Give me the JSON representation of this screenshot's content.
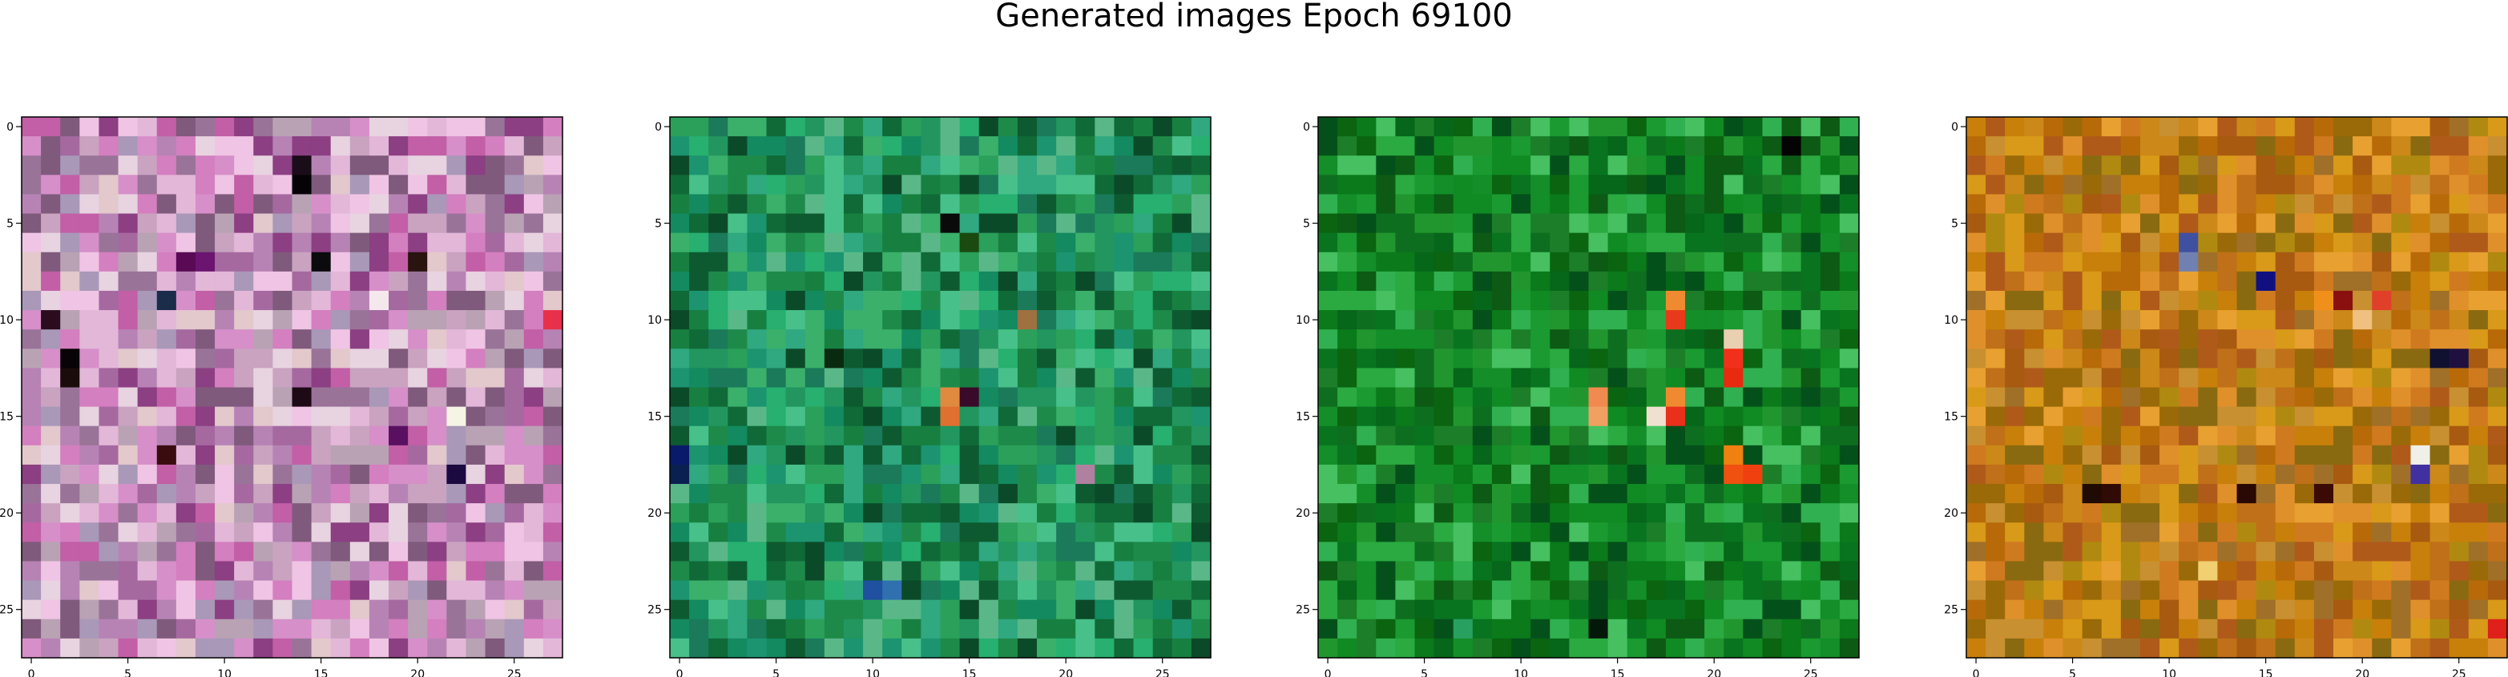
{
  "figure": {
    "title": "Generated images Epoch 69100"
  },
  "chart_data": [
    {
      "type": "heatmap",
      "description": "28x28 RGB image, pinkish-purple palette",
      "grid_size": [
        28,
        28
      ],
      "xlim": [
        -0.5,
        27.5
      ],
      "ylim": [
        27.5,
        -0.5
      ],
      "xticks": [
        0,
        5,
        10,
        15,
        20,
        25
      ],
      "yticks": [
        0,
        5,
        10,
        15,
        20,
        25
      ],
      "palette": [
        "#c9a3c0",
        "#e3b7d8",
        "#b783b5",
        "#a569a0",
        "#d68fc9",
        "#e8d3e0",
        "#9a7399",
        "#c25fa6",
        "#f0c4e4",
        "#7f5a7c",
        "#b9a2b4",
        "#d47fbf",
        "#8c3f82",
        "#e3c8cc",
        "#a998b8"
      ],
      "accents": [
        {
          "row": 2,
          "col": 14,
          "color": "#1a0c18"
        },
        {
          "row": 3,
          "col": 14,
          "color": "#060306"
        },
        {
          "row": 7,
          "col": 8,
          "color": "#5a0a55"
        },
        {
          "row": 7,
          "col": 9,
          "color": "#6b1470"
        },
        {
          "row": 7,
          "col": 15,
          "color": "#0b0a0d"
        },
        {
          "row": 7,
          "col": 20,
          "color": "#2a1410"
        },
        {
          "row": 9,
          "col": 7,
          "color": "#1a2c4a"
        },
        {
          "row": 10,
          "col": 1,
          "color": "#2a0c1e"
        },
        {
          "row": 12,
          "col": 2,
          "color": "#080306"
        },
        {
          "row": 13,
          "col": 2,
          "color": "#1a0c0a"
        },
        {
          "row": 14,
          "col": 14,
          "color": "#1e0a16"
        },
        {
          "row": 16,
          "col": 19,
          "color": "#5a1060"
        },
        {
          "row": 17,
          "col": 7,
          "color": "#3a0c10"
        },
        {
          "row": 18,
          "col": 22,
          "color": "#1a0a40"
        },
        {
          "row": 10,
          "col": 27,
          "color": "#e8304a"
        },
        {
          "row": 9,
          "col": 18,
          "color": "#f4e8ec"
        },
        {
          "row": 15,
          "col": 22,
          "color": "#f6f4e4"
        }
      ],
      "seed": 11
    },
    {
      "type": "heatmap",
      "description": "28x28 RGB image, teal-green palette",
      "grid_size": [
        28,
        28
      ],
      "xlim": [
        -0.5,
        27.5
      ],
      "ylim": [
        27.5,
        -0.5
      ],
      "xticks": [
        0,
        5,
        10,
        15,
        20,
        25
      ],
      "yticks": [
        0,
        5,
        10,
        15,
        20,
        25
      ],
      "palette": [
        "#1e8a4a",
        "#2aa05a",
        "#178040",
        "#0f6a38",
        "#3ab06a",
        "#1c9470",
        "#0e5a30",
        "#27b070",
        "#48c08a",
        "#1a7a5a",
        "#30a880",
        "#0b4a28",
        "#5ab888",
        "#138a60",
        "#22965e"
      ],
      "accents": [
        {
          "row": 5,
          "col": 14,
          "color": "#0a0a0a"
        },
        {
          "row": 6,
          "col": 15,
          "color": "#1a4a10"
        },
        {
          "row": 10,
          "col": 18,
          "color": "#a07040"
        },
        {
          "row": 14,
          "col": 14,
          "color": "#e08a40"
        },
        {
          "row": 15,
          "col": 14,
          "color": "#e07030"
        },
        {
          "row": 14,
          "col": 15,
          "color": "#3a0a2a"
        },
        {
          "row": 17,
          "col": 0,
          "color": "#0a1a6a"
        },
        {
          "row": 18,
          "col": 0,
          "color": "#0a2050"
        },
        {
          "row": 18,
          "col": 21,
          "color": "#b080a0"
        },
        {
          "row": 24,
          "col": 10,
          "color": "#2050a0"
        },
        {
          "row": 24,
          "col": 11,
          "color": "#3070b0"
        },
        {
          "row": 12,
          "col": 8,
          "color": "#0a2a10"
        }
      ],
      "seed": 23
    },
    {
      "type": "heatmap",
      "description": "28x28 RGB image, deep green palette with orange-red accents",
      "grid_size": [
        28,
        28
      ],
      "xlim": [
        -0.5,
        27.5
      ],
      "ylim": [
        27.5,
        -0.5
      ],
      "xticks": [
        0,
        5,
        10,
        15,
        20,
        25
      ],
      "yticks": [
        0,
        5,
        10,
        15,
        20,
        25
      ],
      "palette": [
        "#0a7a1a",
        "#108a22",
        "#06661a",
        "#1a9a30",
        "#0c5a14",
        "#2aaa40",
        "#138e28",
        "#04501a",
        "#1c7e28",
        "#30b050",
        "#0e6e20",
        "#46c060",
        "#087420",
        "#22962e",
        "#0a6410"
      ],
      "accents": [
        {
          "row": 1,
          "col": 24,
          "color": "#040404"
        },
        {
          "row": 9,
          "col": 18,
          "color": "#f08a30"
        },
        {
          "row": 10,
          "col": 18,
          "color": "#e83a1a"
        },
        {
          "row": 11,
          "col": 21,
          "color": "#e8d0b0"
        },
        {
          "row": 12,
          "col": 21,
          "color": "#f0301a"
        },
        {
          "row": 13,
          "col": 21,
          "color": "#e82a10"
        },
        {
          "row": 14,
          "col": 14,
          "color": "#f08a50"
        },
        {
          "row": 15,
          "col": 14,
          "color": "#f0a060"
        },
        {
          "row": 14,
          "col": 18,
          "color": "#f08a30"
        },
        {
          "row": 15,
          "col": 17,
          "color": "#f0e0d0"
        },
        {
          "row": 15,
          "col": 18,
          "color": "#e8301a"
        },
        {
          "row": 17,
          "col": 21,
          "color": "#f08010"
        },
        {
          "row": 18,
          "col": 21,
          "color": "#f05010"
        },
        {
          "row": 18,
          "col": 22,
          "color": "#f04010"
        },
        {
          "row": 26,
          "col": 14,
          "color": "#04180a"
        },
        {
          "row": 26,
          "col": 7,
          "color": "#28a060"
        }
      ],
      "seed": 37
    },
    {
      "type": "heatmap",
      "description": "28x28 RGB image, orange-ochre palette",
      "grid_size": [
        28,
        28
      ],
      "xlim": [
        -0.5,
        27.5
      ],
      "ylim": [
        27.5,
        -0.5
      ],
      "xticks": [
        0,
        5,
        10,
        15,
        20,
        25
      ],
      "yticks": [
        0,
        5,
        10,
        15,
        20,
        25
      ],
      "palette": [
        "#c8800a",
        "#b86a08",
        "#d89a18",
        "#a85a10",
        "#e0902a",
        "#c07018",
        "#b08a10",
        "#9a6a08",
        "#d07a20",
        "#c89030",
        "#a07028",
        "#e8a030",
        "#b05a1a",
        "#8a6a10",
        "#cc8818"
      ],
      "accents": [
        {
          "row": 6,
          "col": 11,
          "color": "#4050a0"
        },
        {
          "row": 7,
          "col": 11,
          "color": "#7080b0"
        },
        {
          "row": 8,
          "col": 15,
          "color": "#101080"
        },
        {
          "row": 9,
          "col": 18,
          "color": "#f0901a"
        },
        {
          "row": 9,
          "col": 19,
          "color": "#8a1010"
        },
        {
          "row": 9,
          "col": 21,
          "color": "#e0402a"
        },
        {
          "row": 10,
          "col": 20,
          "color": "#f0c080"
        },
        {
          "row": 12,
          "col": 24,
          "color": "#101030"
        },
        {
          "row": 12,
          "col": 25,
          "color": "#201040"
        },
        {
          "row": 17,
          "col": 23,
          "color": "#f0f0e8"
        },
        {
          "row": 18,
          "col": 23,
          "color": "#4030a0"
        },
        {
          "row": 19,
          "col": 6,
          "color": "#200a04"
        },
        {
          "row": 19,
          "col": 7,
          "color": "#300a04"
        },
        {
          "row": 19,
          "col": 14,
          "color": "#2a0804"
        },
        {
          "row": 19,
          "col": 18,
          "color": "#3a0a04"
        },
        {
          "row": 23,
          "col": 12,
          "color": "#f0d070"
        },
        {
          "row": 26,
          "col": 27,
          "color": "#e0201a"
        }
      ],
      "seed": 53
    }
  ]
}
